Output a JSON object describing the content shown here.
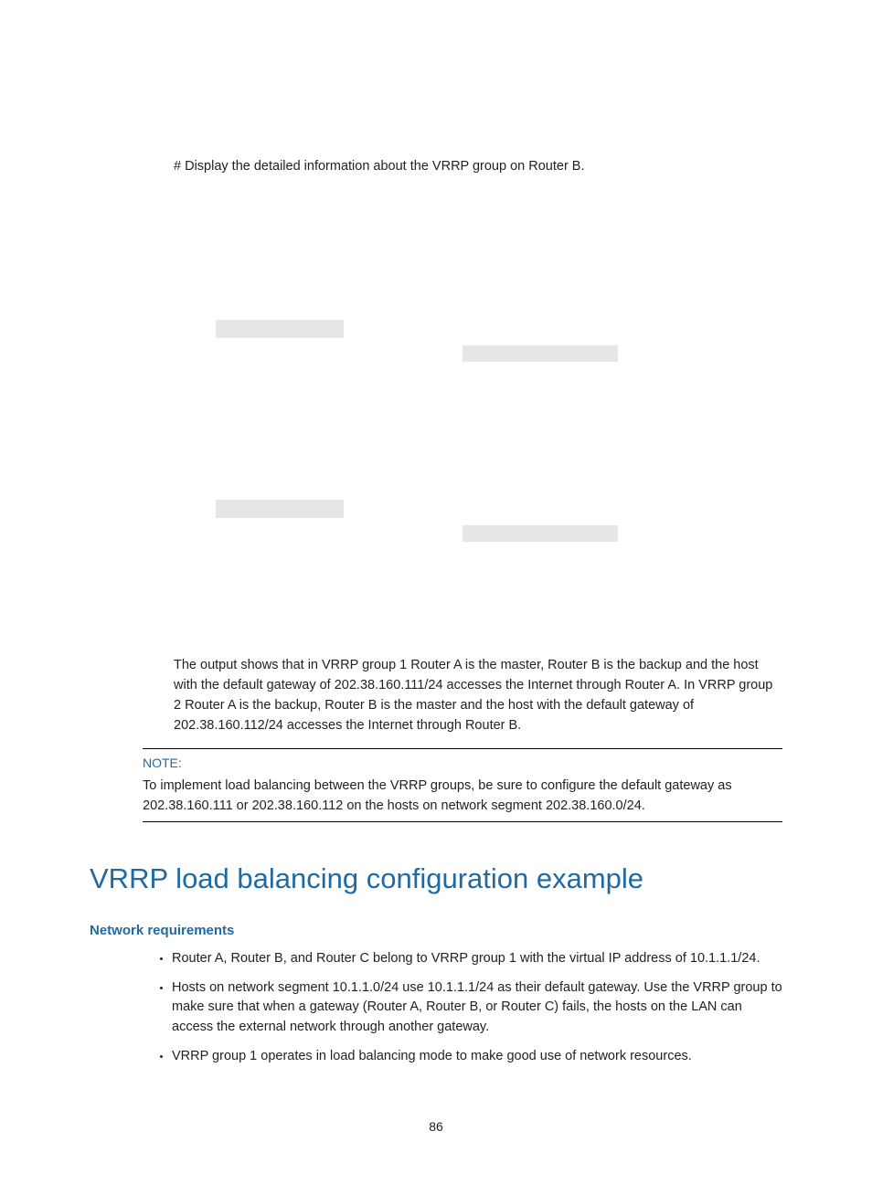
{
  "intro": "# Display the detailed information about the VRRP group on Router B.",
  "output_para": "The output shows that in VRRP group 1 Router A is the master, Router B is the backup and the host with the default gateway of 202.38.160.111/24 accesses the Internet through Router A. In VRRP group 2 Router A is the backup, Router B is the master and the host with the default gateway of 202.38.160.112/24 accesses the Internet through Router B.",
  "note": {
    "label": "NOTE:",
    "body": "To implement load balancing between the VRRP groups, be sure to configure the default gateway as 202.38.160.111 or 202.38.160.112 on the hosts on network segment 202.38.160.0/24."
  },
  "heading": "VRRP load balancing configuration example",
  "subheading": "Network requirements",
  "bullets": [
    "Router A, Router B, and Router C belong to VRRP group 1 with the virtual IP address of 10.1.1.1/24.",
    "Hosts on network segment 10.1.1.0/24 use 10.1.1.1/24 as their default gateway. Use the VRRP group to make sure that when a gateway (Router A, Router B, or Router C) fails, the hosts on the LAN can access the external network through another gateway.",
    "VRRP group 1 operates in load balancing mode to make good use of network resources."
  ],
  "page_number": "86",
  "colors": {
    "accent": "#1f6aa5",
    "text": "#222222",
    "placeholder_block": "#e6e6e6",
    "background": "#ffffff",
    "rule": "#000000"
  },
  "typography": {
    "body_font": "Arial",
    "body_size_pt": 11,
    "h1_size_pt": 23,
    "h1_weight": 300,
    "h3_size_pt": 11,
    "h3_weight": "bold",
    "mono_font": "Courier"
  }
}
